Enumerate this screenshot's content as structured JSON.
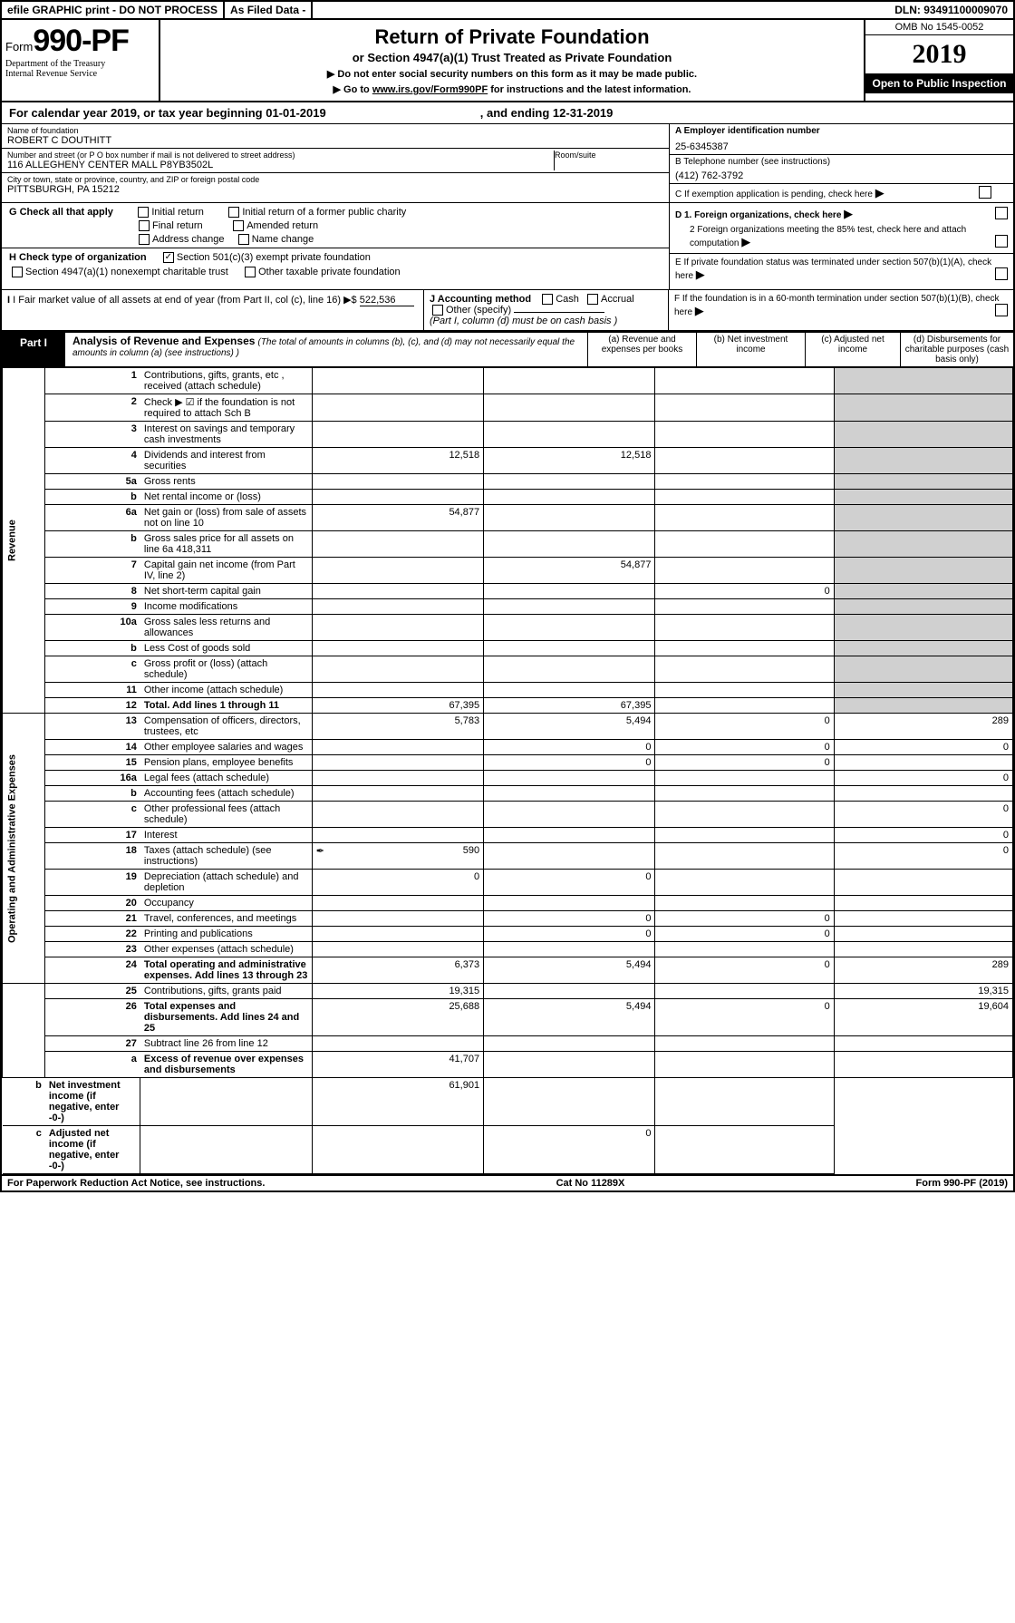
{
  "topbar": {
    "efile": "efile GRAPHIC print - DO NOT PROCESS",
    "asfiled": "As Filed Data - ",
    "dln": "DLN: 93491100009070"
  },
  "header": {
    "form_prefix": "Form",
    "form_number": "990-PF",
    "dept": "Department of the Treasury",
    "irs": "Internal Revenue Service",
    "title": "Return of Private Foundation",
    "subtitle": "or Section 4947(a)(1) Trust Treated as Private Foundation",
    "instr1": "▶ Do not enter social security numbers on this form as it may be made public.",
    "instr2_pre": "▶ Go to ",
    "instr2_link": "www.irs.gov/Form990PF",
    "instr2_post": " for instructions and the latest information.",
    "omb": "OMB No 1545-0052",
    "year": "2019",
    "open": "Open to Public Inspection"
  },
  "calyear": {
    "text": "For calendar year 2019, or tax year beginning 01-01-2019",
    "end": ", and ending 12-31-2019"
  },
  "info": {
    "name_label": "Name of foundation",
    "name": "ROBERT C DOUTHITT",
    "addr_label": "Number and street (or P O  box number if mail is not delivered to street address)",
    "addr": "116 ALLEGHENY CENTER MALL P8YB3502L",
    "room_label": "Room/suite",
    "city_label": "City or town, state or province, country, and ZIP or foreign postal code",
    "city": "PITTSBURGH, PA  15212",
    "a_label": "A Employer identification number",
    "a_val": "25-6345387",
    "b_label": "B Telephone number (see instructions)",
    "b_val": "(412) 762-3792",
    "c_label": "C If exemption application is pending, check here"
  },
  "checks": {
    "g_label": "G Check all that apply",
    "g1": "Initial return",
    "g2": "Initial return of a former public charity",
    "g3": "Final return",
    "g4": "Amended return",
    "g5": "Address change",
    "g6": "Name change",
    "h_label": "H Check type of organization",
    "h1": "Section 501(c)(3) exempt private foundation",
    "h2": "Section 4947(a)(1) nonexempt charitable trust",
    "h3": "Other taxable private foundation",
    "d1": "D 1. Foreign organizations, check here",
    "d2": "2 Foreign organizations meeting the 85% test, check here and attach computation",
    "e": "E  If private foundation status was terminated under section 507(b)(1)(A), check here",
    "i_label": "I Fair market value of all assets at end of year (from Part II, col  (c), line 16) ▶$ ",
    "i_val": "522,536",
    "j_label": "J Accounting method",
    "j1": "Cash",
    "j2": "Accrual",
    "j3": "Other (specify)",
    "j_note": "(Part I, column (d) must be on cash basis )",
    "f": "F  If the foundation is in a 60-month termination under section 507(b)(1)(B), check here"
  },
  "part1": {
    "label": "Part I",
    "title": "Analysis of Revenue and Expenses",
    "note": "(The total of amounts in columns (b), (c), and (d) may not necessarily equal the amounts in column (a) (see instructions) )",
    "col_a": "(a)   Revenue and expenses per books",
    "col_b": "(b)  Net investment income",
    "col_c": "(c)  Adjusted net income",
    "col_d": "(d)  Disbursements for charitable purposes (cash basis only)",
    "side_rev": "Revenue",
    "side_exp": "Operating and Administrative Expenses",
    "rows": [
      {
        "n": "1",
        "d": "Contributions, gifts, grants, etc , received (attach schedule)"
      },
      {
        "n": "2",
        "d": "Check ▶ ☑ if the foundation is not required to attach Sch  B"
      },
      {
        "n": "3",
        "d": "Interest on savings and temporary cash investments"
      },
      {
        "n": "4",
        "d": "Dividends and interest from securities",
        "a": "12,518",
        "b": "12,518"
      },
      {
        "n": "5a",
        "d": "Gross rents"
      },
      {
        "n": "b",
        "d": "Net rental income or (loss)"
      },
      {
        "n": "6a",
        "d": "Net gain or (loss) from sale of assets not on line 10",
        "a": "54,877"
      },
      {
        "n": "b",
        "d": "Gross sales price for all assets on line 6a",
        "inline": "418,311"
      },
      {
        "n": "7",
        "d": "Capital gain net income (from Part IV, line 2)",
        "b": "54,877"
      },
      {
        "n": "8",
        "d": "Net short-term capital gain",
        "c": "0"
      },
      {
        "n": "9",
        "d": "Income modifications"
      },
      {
        "n": "10a",
        "d": "Gross sales less returns and allowances"
      },
      {
        "n": "b",
        "d": "Less  Cost of goods sold"
      },
      {
        "n": "c",
        "d": "Gross profit or (loss) (attach schedule)"
      },
      {
        "n": "11",
        "d": "Other income (attach schedule)"
      },
      {
        "n": "12",
        "d": "Total. Add lines 1 through 11",
        "bold": true,
        "a": "67,395",
        "b": "67,395"
      },
      {
        "n": "13",
        "d": "Compensation of officers, directors, trustees, etc",
        "a": "5,783",
        "b": "5,494",
        "c": "0",
        "dd": "289"
      },
      {
        "n": "14",
        "d": "Other employee salaries and wages",
        "b": "0",
        "c": "0",
        "dd": "0"
      },
      {
        "n": "15",
        "d": "Pension plans, employee benefits",
        "b": "0",
        "c": "0"
      },
      {
        "n": "16a",
        "d": "Legal fees (attach schedule)",
        "dd": "0"
      },
      {
        "n": "b",
        "d": "Accounting fees (attach schedule)"
      },
      {
        "n": "c",
        "d": "Other professional fees (attach schedule)",
        "dd": "0"
      },
      {
        "n": "17",
        "d": "Interest",
        "dd": "0"
      },
      {
        "n": "18",
        "d": "Taxes (attach schedule) (see instructions)",
        "icon": "✒",
        "a": "590",
        "dd": "0"
      },
      {
        "n": "19",
        "d": "Depreciation (attach schedule) and depletion",
        "a": "0",
        "b": "0"
      },
      {
        "n": "20",
        "d": "Occupancy"
      },
      {
        "n": "21",
        "d": "Travel, conferences, and meetings",
        "b": "0",
        "c": "0"
      },
      {
        "n": "22",
        "d": "Printing and publications",
        "b": "0",
        "c": "0"
      },
      {
        "n": "23",
        "d": "Other expenses (attach schedule)"
      },
      {
        "n": "24",
        "d": "Total operating and administrative expenses. Add lines 13 through 23",
        "bold": true,
        "a": "6,373",
        "b": "5,494",
        "c": "0",
        "dd": "289"
      },
      {
        "n": "25",
        "d": "Contributions, gifts, grants paid",
        "a": "19,315",
        "dd": "19,315"
      },
      {
        "n": "26",
        "d": "Total expenses and disbursements. Add lines 24 and 25",
        "bold": true,
        "a": "25,688",
        "b": "5,494",
        "c": "0",
        "dd": "19,604"
      },
      {
        "n": "27",
        "d": "Subtract line 26 from line 12"
      },
      {
        "n": "a",
        "d": "Excess of revenue over expenses and disbursements",
        "bold": true,
        "a": "41,707"
      },
      {
        "n": "b",
        "d": "Net investment income (if negative, enter -0-)",
        "bold": true,
        "b": "61,901"
      },
      {
        "n": "c",
        "d": "Adjusted net income (if negative, enter -0-)",
        "bold": true,
        "c": "0"
      }
    ]
  },
  "footer": {
    "left": "For Paperwork Reduction Act Notice, see instructions.",
    "mid": "Cat  No  11289X",
    "right": "Form 990-PF (2019)"
  },
  "colors": {
    "black": "#000000",
    "shade": "#d0d0d0"
  }
}
